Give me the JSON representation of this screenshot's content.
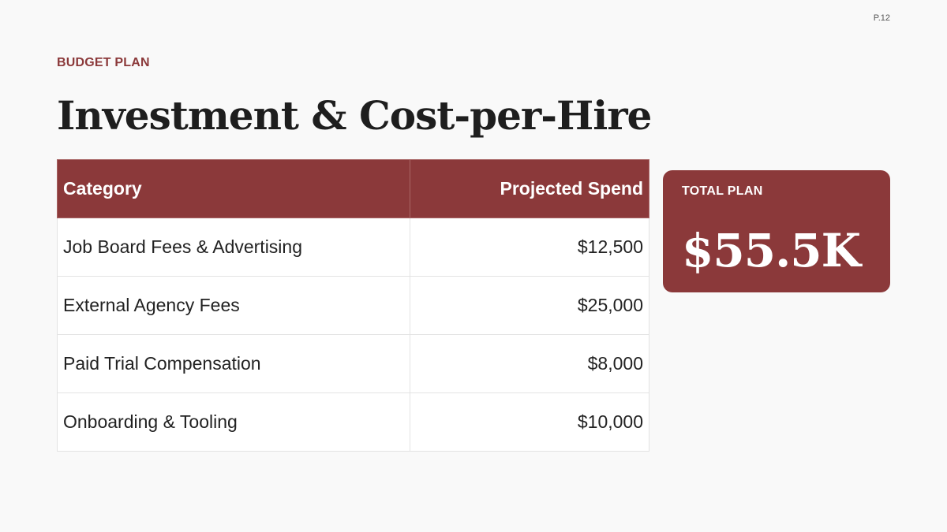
{
  "page": {
    "number": "P.12"
  },
  "eyebrow": "BUDGET PLAN",
  "title": "Investment & Cost-per-Hire",
  "table": {
    "headers": {
      "category": "Category",
      "spend": "Projected Spend"
    },
    "rows": [
      {
        "category": "Job Board Fees & Advertising",
        "spend": "$12,500"
      },
      {
        "category": "External Agency Fees",
        "spend": "$25,000"
      },
      {
        "category": "Paid Trial Compensation",
        "spend": "$8,000"
      },
      {
        "category": "Onboarding & Tooling",
        "spend": "$10,000"
      }
    ]
  },
  "total": {
    "label": "TOTAL PLAN",
    "value": "$55.5K"
  },
  "colors": {
    "accent": "#8b393a",
    "background": "#f9f9f9",
    "text": "#1e1e1e"
  }
}
